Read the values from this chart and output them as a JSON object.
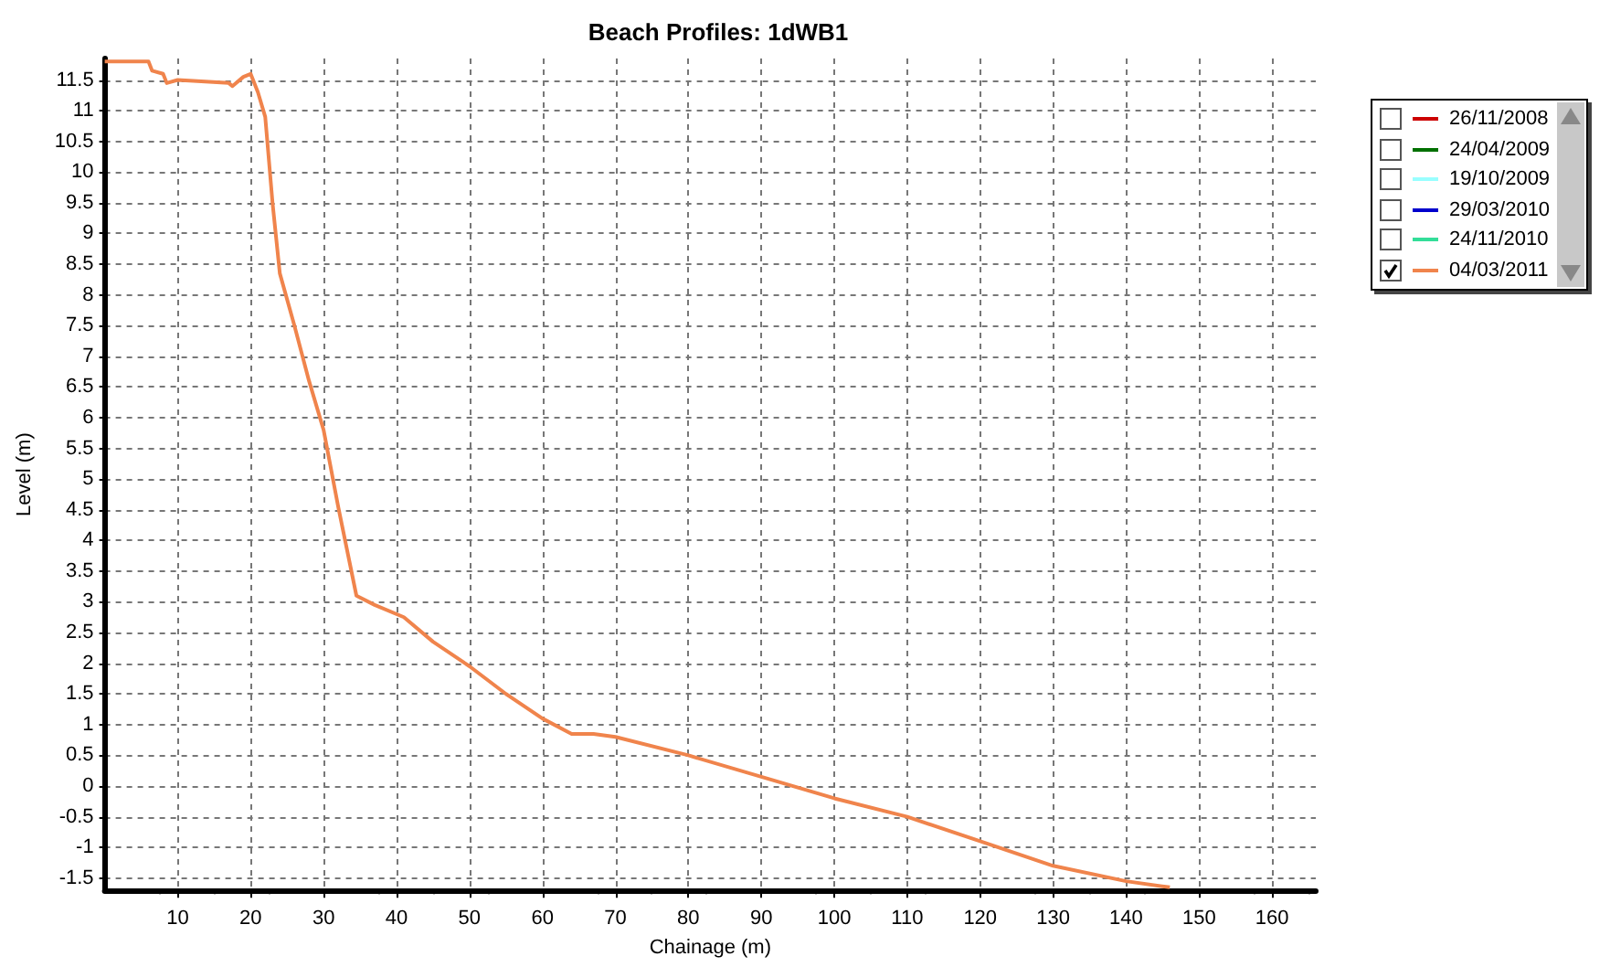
{
  "chart_data": {
    "type": "line",
    "title": "Beach Profiles: 1dWB1",
    "xlabel": "Chainage (m)",
    "ylabel": "Level (m)",
    "xlim": [
      0,
      166
    ],
    "xticks": [
      10,
      20,
      30,
      40,
      50,
      60,
      70,
      80,
      90,
      100,
      110,
      120,
      130,
      140,
      150,
      160
    ],
    "ylim": [
      -1.7,
      11.85
    ],
    "yticks": [
      -1.5,
      -1,
      -0.5,
      0,
      0.5,
      1,
      1.5,
      2,
      2.5,
      3,
      3.5,
      4,
      4.5,
      5,
      5.5,
      6,
      6.5,
      7,
      7.5,
      8,
      8.5,
      9,
      9.5,
      10,
      10.5,
      11,
      11.5
    ],
    "grid": true,
    "legend": "top right",
    "marker": "none",
    "line_style": "solid",
    "series": [
      {
        "name": "26/11/2008",
        "color": "#cc0000"
      },
      {
        "name": "24/04/2009",
        "color": "#007000"
      },
      {
        "name": "19/10/2009",
        "color": "#99ffff"
      },
      {
        "name": "29/03/2010",
        "color": "#0000cc"
      },
      {
        "name": "24/11/2010",
        "color": "#33dd99"
      },
      {
        "name": "04/03/2011",
        "color": "#f0844c",
        "x": [
          0,
          6,
          6.5,
          8,
          8.5,
          10,
          17,
          17.5,
          19,
          20,
          21,
          22,
          23,
          24,
          26,
          28,
          30,
          32,
          34.5,
          37,
          41,
          45,
          50,
          55,
          60,
          64,
          67,
          70,
          80,
          90,
          100,
          110,
          120,
          130,
          140,
          146
        ],
        "values": [
          11.8,
          11.8,
          11.65,
          11.6,
          11.45,
          11.5,
          11.45,
          11.4,
          11.55,
          11.6,
          11.3,
          10.9,
          9.5,
          8.35,
          7.5,
          6.6,
          5.8,
          4.55,
          3.1,
          2.95,
          2.75,
          2.35,
          1.95,
          1.5,
          1.1,
          0.85,
          0.85,
          0.8,
          0.5,
          0.15,
          -0.2,
          -0.5,
          -0.9,
          -1.3,
          -1.55,
          -1.65
        ]
      }
    ]
  }
}
